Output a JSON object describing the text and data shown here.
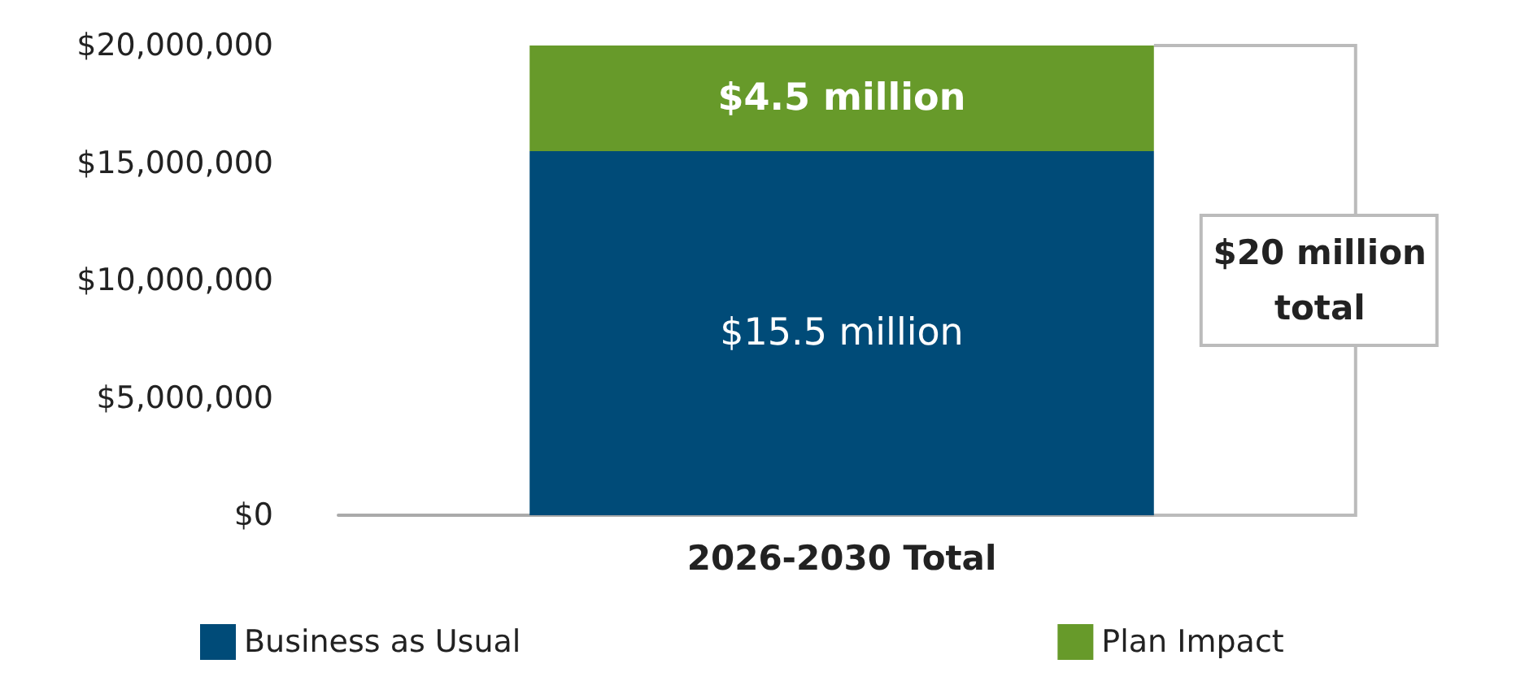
{
  "chart_data": {
    "type": "bar",
    "stacked": true,
    "categories": [
      "2026-2030 Total"
    ],
    "series": [
      {
        "name": "Business as Usual",
        "color": "#004b78",
        "values": [
          15500000
        ],
        "value_labels": [
          "$15.5 million"
        ]
      },
      {
        "name": "Plan Impact",
        "color": "#679a2a",
        "values": [
          4500000
        ],
        "value_labels": [
          "$4.5 million"
        ]
      }
    ],
    "totals": [
      "$20 million total"
    ],
    "ylim": [
      0,
      20000000
    ],
    "yticks": [
      {
        "value": 0,
        "label": "$0"
      },
      {
        "value": 5000000,
        "label": "$5,000,000"
      },
      {
        "value": 10000000,
        "label": "$10,000,000"
      },
      {
        "value": 15000000,
        "label": "$15,000,000"
      },
      {
        "value": 20000000,
        "label": "$20,000,000"
      }
    ],
    "grid": false,
    "legend": "bottom"
  }
}
